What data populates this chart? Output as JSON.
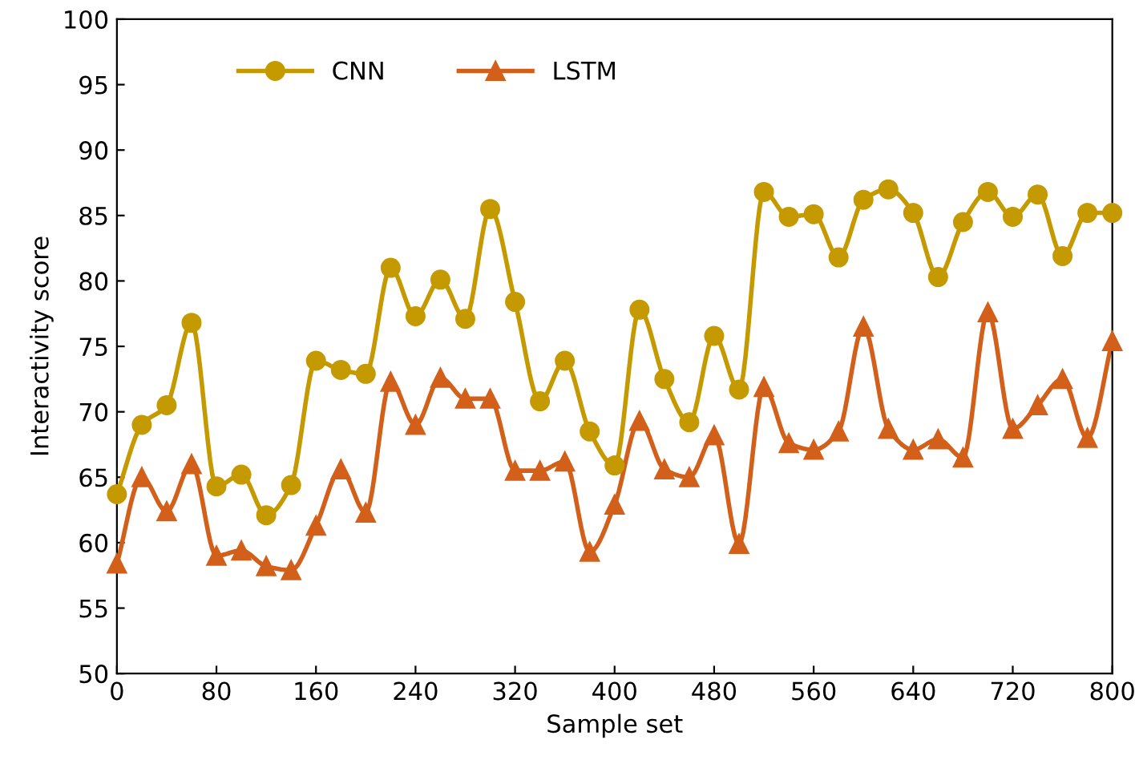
{
  "chart_data": {
    "type": "line",
    "xlabel": "Sample set",
    "ylabel": "Interactivity score",
    "x": [
      0,
      20,
      40,
      60,
      80,
      100,
      120,
      140,
      160,
      180,
      200,
      220,
      240,
      260,
      280,
      300,
      320,
      340,
      360,
      380,
      400,
      420,
      440,
      460,
      480,
      500,
      520,
      540,
      560,
      580,
      600,
      620,
      640,
      660,
      680,
      700,
      720,
      740,
      760,
      780,
      800
    ],
    "series": [
      {
        "name": "CNN",
        "color": "#c49a00",
        "marker": "circle",
        "values": [
          63.7,
          69,
          70.5,
          76.8,
          64.3,
          65.2,
          62.1,
          64.4,
          73.9,
          73.2,
          72.9,
          81,
          77.3,
          80.1,
          77.1,
          85.5,
          78.4,
          70.8,
          73.9,
          68.5,
          65.9,
          77.8,
          72.5,
          69.2,
          75.8,
          71.7,
          86.8,
          84.9,
          85.1,
          81.8,
          86.2,
          87,
          85.2,
          80.3,
          84.5,
          86.8,
          84.9,
          86.6,
          81.9,
          85.2,
          85.2
        ]
      },
      {
        "name": "LSTM",
        "color": "#d2601a",
        "marker": "triangle",
        "values": [
          58.4,
          65,
          62.4,
          66,
          59,
          59.4,
          58.2,
          57.9,
          61.3,
          65.6,
          62.3,
          72.3,
          69,
          72.6,
          71,
          71,
          65.5,
          65.5,
          66.2,
          59.3,
          62.9,
          69.3,
          65.6,
          65,
          68.2,
          59.9,
          71.9,
          67.6,
          67.1,
          68.5,
          76.5,
          68.7,
          67.1,
          67.9,
          66.5,
          77.6,
          68.7,
          70.5,
          72.5,
          68,
          75.4
        ]
      }
    ],
    "xlim": [
      0,
      800
    ],
    "xticks": [
      0,
      80,
      160,
      240,
      320,
      400,
      480,
      560,
      640,
      720,
      800
    ],
    "ylim": [
      50,
      100
    ],
    "yticks": [
      50,
      55,
      60,
      65,
      70,
      75,
      80,
      85,
      90,
      95,
      100
    ],
    "grid": false,
    "legend": "top left",
    "line_style": "solid"
  }
}
